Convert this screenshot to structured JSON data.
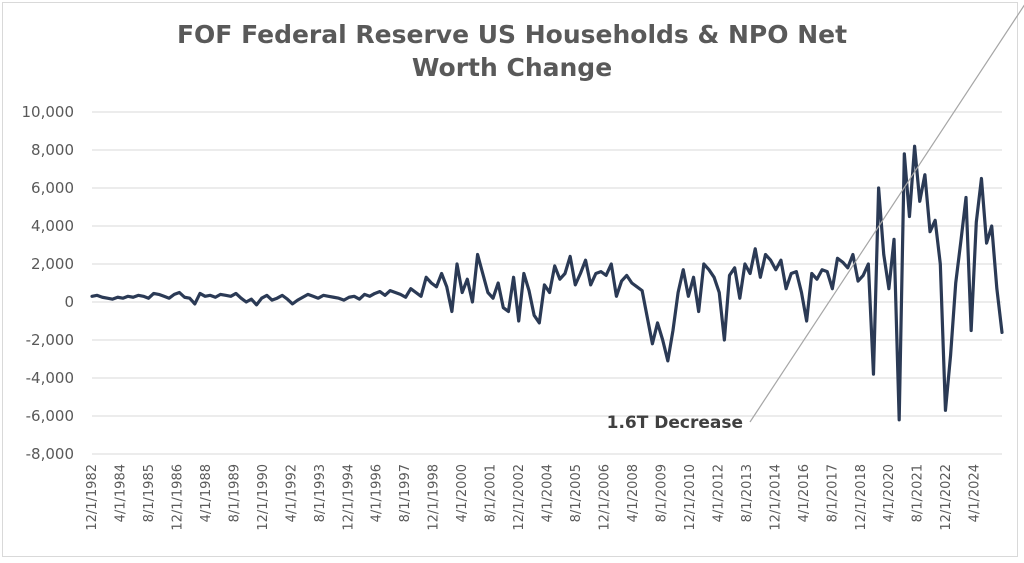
{
  "chart_data": {
    "type": "line",
    "title_lines": [
      "FOF Federal Reserve US Households & NPO Net",
      "Worth Change"
    ],
    "xlabel": "",
    "ylabel": "",
    "ylim": [
      -8000,
      10000
    ],
    "yticks": [
      10000,
      8000,
      6000,
      4000,
      2000,
      0,
      -2000,
      -4000,
      -6000,
      -8000
    ],
    "ytick_labels": [
      "10,000",
      "8,000",
      "6,000",
      "4,000",
      "2,000",
      "0",
      "-2,000",
      "-4,000",
      "-6,000",
      "-8,000"
    ],
    "xtick_labels": [
      "12/1/1982",
      "4/1/1984",
      "8/1/1985",
      "12/1/1986",
      "4/1/1988",
      "8/1/1989",
      "12/1/1990",
      "4/1/1992",
      "8/1/1993",
      "12/1/1994",
      "4/1/1996",
      "8/1/1997",
      "12/1/1998",
      "4/1/2000",
      "8/1/2001",
      "12/1/2002",
      "4/1/2004",
      "8/1/2005",
      "12/1/2006",
      "4/1/2008",
      "8/1/2009",
      "12/1/2010",
      "4/1/2012",
      "8/1/2013",
      "12/1/2014",
      "4/1/2016",
      "8/1/2017",
      "12/1/2018",
      "4/1/2020",
      "8/1/2021",
      "12/1/2022",
      "4/1/2024"
    ],
    "grid": true,
    "line_color": "#2b3a55",
    "series": [
      {
        "values": [
          300,
          350,
          250,
          200,
          150,
          250,
          200,
          300,
          250,
          350,
          300,
          200,
          450,
          400,
          300,
          200,
          400,
          500,
          250,
          200,
          -100,
          450,
          300,
          350,
          250,
          400,
          350,
          300,
          450,
          200,
          0,
          150,
          -150,
          200,
          350,
          100,
          200,
          350,
          150,
          -100,
          100,
          250,
          400,
          300,
          200,
          350,
          300,
          250,
          200,
          100,
          250,
          300,
          150,
          400,
          300,
          450,
          550,
          350,
          600,
          500,
          400,
          250,
          700,
          500,
          300,
          1300,
          1000,
          800,
          1500,
          800,
          -500,
          2000,
          500,
          1200,
          0,
          2500,
          1500,
          500,
          200,
          1000,
          -300,
          -500,
          1300,
          -1000,
          1500,
          600,
          -700,
          -1100,
          900,
          500,
          1900,
          1200,
          1500,
          2400,
          900,
          1500,
          2200,
          900,
          1500,
          1600,
          1400,
          2000,
          300,
          1100,
          1400,
          1000,
          800,
          600,
          -800,
          -2200,
          -1100,
          -2000,
          -3100,
          -1500,
          500,
          1700,
          300,
          1300,
          -500,
          2000,
          1700,
          1300,
          500,
          -2000,
          1400,
          1800,
          200,
          2000,
          1500,
          2800,
          1300,
          2500,
          2200,
          1700,
          2200,
          700,
          1500,
          1600,
          500,
          -1000,
          1500,
          1200,
          1700,
          1600,
          700,
          2300,
          2100,
          1800,
          2500,
          1100,
          1400,
          2000,
          -3800,
          6000,
          2500,
          700,
          3300,
          -6200,
          7800,
          4500,
          8200,
          5300,
          6700,
          3700,
          4300,
          2000,
          -5700,
          -2800,
          1000,
          3200,
          5500,
          -1500,
          4200,
          6500,
          3100,
          4000,
          700,
          -1600
        ]
      }
    ],
    "annotation": {
      "text": "1.6T Decrease",
      "target_index": 182
    }
  }
}
